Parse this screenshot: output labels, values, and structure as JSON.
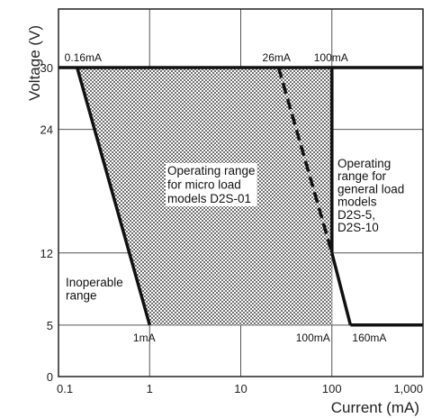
{
  "chart_data": {
    "type": "area",
    "title": "",
    "xlabel": "Current (mA)",
    "ylabel": "Voltage (V)",
    "x_scale": "log",
    "xlim": [
      0.1,
      1000
    ],
    "ylim": [
      0,
      30
    ],
    "x_ticks": [
      "0.1",
      "1",
      "10",
      "100",
      "1,000"
    ],
    "y_tick_values": [
      0,
      5,
      12,
      24,
      30
    ],
    "y_ticks": [
      "0",
      "5",
      "12",
      "24",
      "30"
    ],
    "grid": true,
    "regions": [
      {
        "label": "Operating range\nfor micro load\nmodels D2S-01",
        "fill": "dotted",
        "boundary": [
          {
            "x": 0.16,
            "y": 30
          },
          {
            "x": 100,
            "y": 30
          },
          {
            "x": 100,
            "y": 5
          },
          {
            "x": 1,
            "y": 5
          }
        ]
      }
    ],
    "series": [
      {
        "style": "solid",
        "points": [
          {
            "x": 0.1,
            "y": 30
          },
          {
            "x": 1000,
            "y": 30
          }
        ]
      },
      {
        "style": "solid",
        "points": [
          {
            "x": 0.16,
            "y": 30
          },
          {
            "x": 1,
            "y": 5
          }
        ]
      },
      {
        "style": "solid",
        "points": [
          {
            "x": 100,
            "y": 30
          },
          {
            "x": 100,
            "y": 12
          }
        ]
      },
      {
        "style": "dashed",
        "points": [
          {
            "x": 26,
            "y": 30
          },
          {
            "x": 100,
            "y": 12
          }
        ]
      },
      {
        "style": "solid",
        "points": [
          {
            "x": 100,
            "y": 12
          },
          {
            "x": 160,
            "y": 5
          }
        ]
      },
      {
        "style": "solid",
        "points": [
          {
            "x": 160,
            "y": 5
          },
          {
            "x": 1000,
            "y": 5
          }
        ]
      }
    ],
    "annotations": [
      {
        "text": "0.16mA",
        "x": 0.16,
        "y": 30
      },
      {
        "text": "26mA",
        "x": 26,
        "y": 30
      },
      {
        "text": "100mA",
        "x": 100,
        "y": 30
      },
      {
        "text": "1mA",
        "x": 1,
        "y": 5
      },
      {
        "text": "100mA",
        "x": 100,
        "y": 5
      },
      {
        "text": "160mA",
        "x": 160,
        "y": 5
      }
    ],
    "region_labels": [
      {
        "lines": [
          "Operating range",
          "for micro load",
          "models D2S-01"
        ]
      },
      {
        "lines": [
          "Operating",
          "range for",
          "general load",
          "models",
          "D2S-5,",
          "D2S-10"
        ]
      },
      {
        "lines": [
          "Inoperable",
          "range"
        ]
      }
    ]
  }
}
